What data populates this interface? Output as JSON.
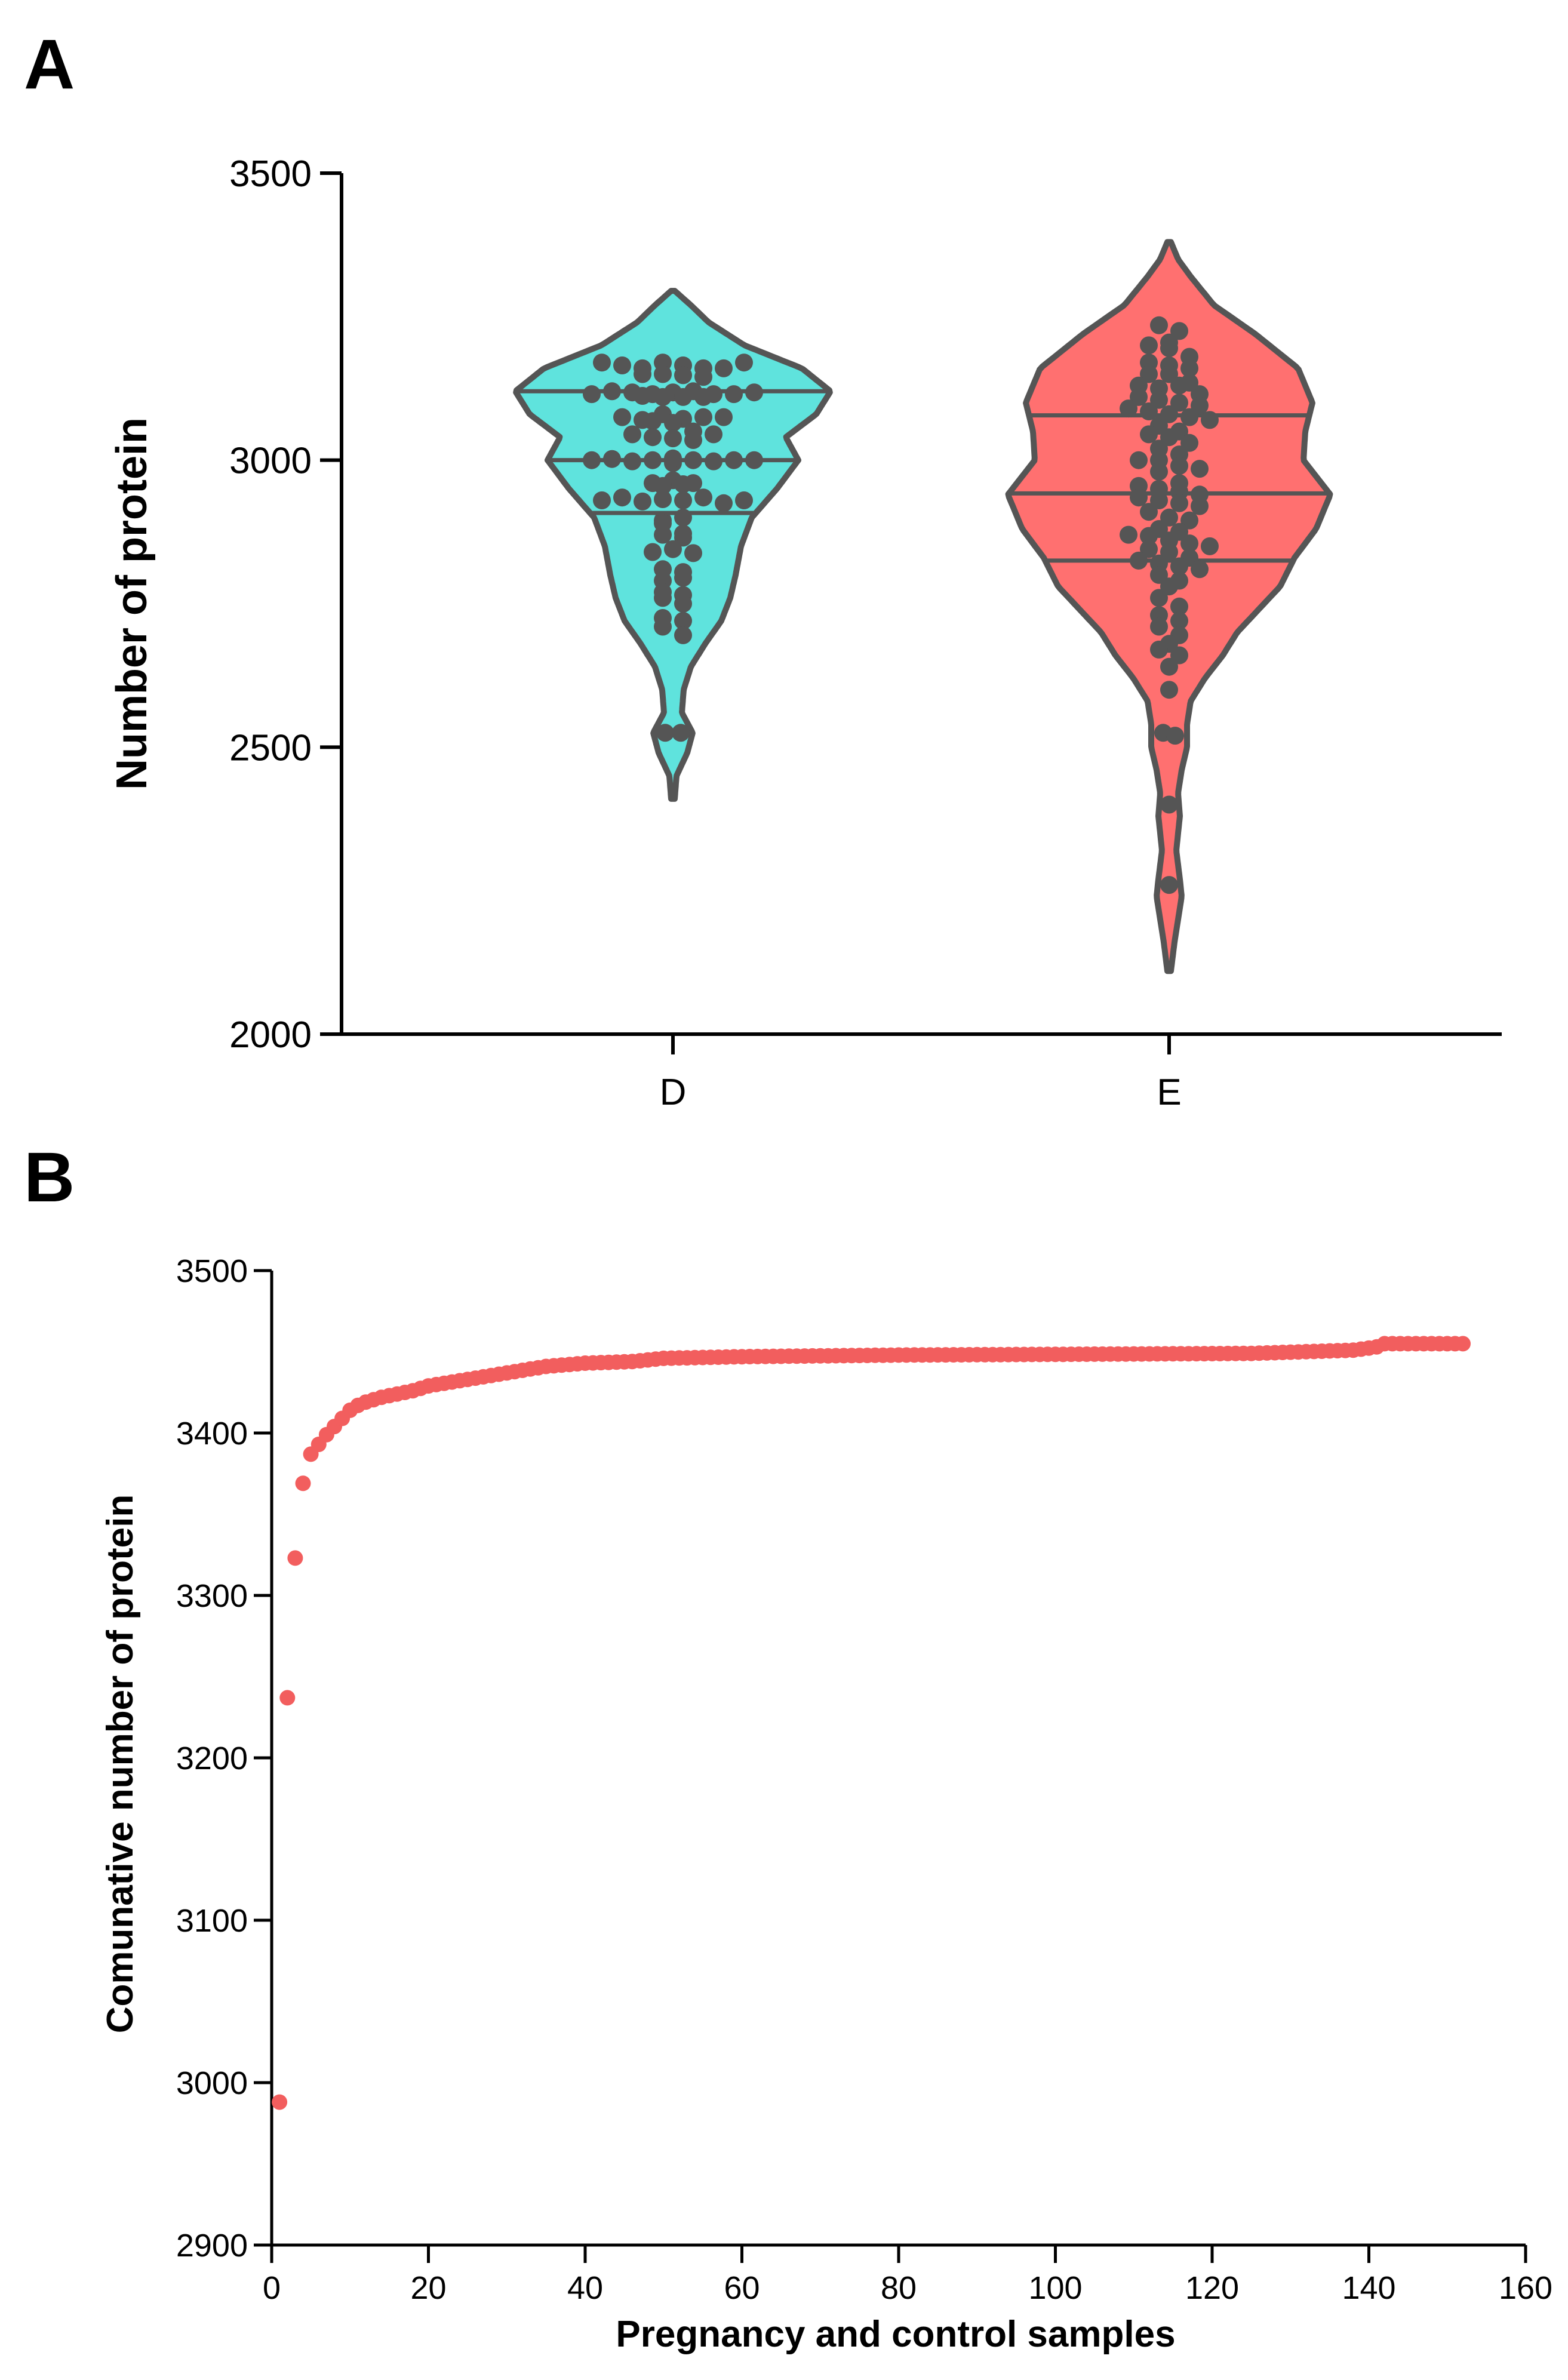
{
  "chart_data": [
    {
      "panel": "A",
      "type": "violin",
      "title": "",
      "xlabel": "",
      "ylabel": "Number of protein",
      "ylim": [
        2000,
        3500
      ],
      "yticks": [
        "2000",
        "2500",
        "3000",
        "3500"
      ],
      "categories": [
        "D",
        "E"
      ],
      "colors": {
        "D": "#5fe3dd",
        "E": "#ff7070",
        "outline": "#555555"
      },
      "groups": [
        {
          "name": "D",
          "min": 2410,
          "max": 3295,
          "quartiles": [
            2908,
            3000,
            3120
          ],
          "density": [
            [
              2410,
              0.01
            ],
            [
              2450,
              0.02
            ],
            [
              2490,
              0.08
            ],
            [
              2525,
              0.11
            ],
            [
              2560,
              0.05
            ],
            [
              2600,
              0.06
            ],
            [
              2640,
              0.1
            ],
            [
              2680,
              0.18
            ],
            [
              2720,
              0.27
            ],
            [
              2760,
              0.32
            ],
            [
              2800,
              0.35
            ],
            [
              2850,
              0.38
            ],
            [
              2900,
              0.44
            ],
            [
              2950,
              0.58
            ],
            [
              3000,
              0.7
            ],
            [
              3040,
              0.63
            ],
            [
              3080,
              0.8
            ],
            [
              3120,
              0.88
            ],
            [
              3160,
              0.72
            ],
            [
              3200,
              0.4
            ],
            [
              3240,
              0.2
            ],
            [
              3270,
              0.1
            ],
            [
              3295,
              0.01
            ]
          ],
          "points": [
            3170,
            3165,
            3160,
            3170,
            3165,
            3160,
            3150,
            3150,
            3148,
            3145,
            3160,
            3170,
            3115,
            3120,
            3118,
            3115,
            3112,
            3110,
            3118,
            3120,
            3115,
            3110,
            3115,
            3118,
            3110,
            3075,
            3070,
            3080,
            3072,
            3075,
            3068,
            3065,
            3075,
            3045,
            3040,
            3050,
            3038,
            3035,
            3045,
            3000,
            3002,
            2998,
            3000,
            2995,
            3000,
            3003,
            2998,
            3000,
            3000,
            2960,
            2965,
            2955,
            2960,
            2958,
            2930,
            2935,
            2928,
            2932,
            2930,
            2935,
            2925,
            2930,
            2895,
            2900,
            2890,
            2870,
            2865,
            2872,
            2840,
            2845,
            2838,
            2810,
            2805,
            2790,
            2795,
            2770,
            2765,
            2760,
            2750,
            2725,
            2720,
            2710,
            2695,
            2525,
            2525
          ]
        },
        {
          "name": "E",
          "min": 2110,
          "max": 3380,
          "quartiles": [
            2825,
            2942,
            3078
          ],
          "density": [
            [
              2110,
              0.01
            ],
            [
              2160,
              0.03
            ],
            [
              2200,
              0.05
            ],
            [
              2240,
              0.07
            ],
            [
              2270,
              0.06
            ],
            [
              2320,
              0.04
            ],
            [
              2380,
              0.06
            ],
            [
              2420,
              0.05
            ],
            [
              2460,
              0.07
            ],
            [
              2500,
              0.1
            ],
            [
              2540,
              0.1
            ],
            [
              2580,
              0.12
            ],
            [
              2620,
              0.2
            ],
            [
              2660,
              0.3
            ],
            [
              2700,
              0.38
            ],
            [
              2740,
              0.5
            ],
            [
              2780,
              0.62
            ],
            [
              2830,
              0.7
            ],
            [
              2880,
              0.82
            ],
            [
              2940,
              0.9
            ],
            [
              3000,
              0.75
            ],
            [
              3050,
              0.76
            ],
            [
              3100,
              0.8
            ],
            [
              3160,
              0.72
            ],
            [
              3220,
              0.48
            ],
            [
              3270,
              0.25
            ],
            [
              3320,
              0.12
            ],
            [
              3350,
              0.05
            ],
            [
              3380,
              0.01
            ]
          ],
          "points": [
            3235,
            3225,
            3205,
            3200,
            3195,
            3180,
            3170,
            3165,
            3160,
            3150,
            3150,
            3135,
            3130,
            3125,
            3130,
            3115,
            3110,
            3105,
            3100,
            3095,
            3090,
            3085,
            3080,
            3075,
            3070,
            3060,
            3050,
            3045,
            3040,
            3030,
            3020,
            3010,
            3000,
            3000,
            2990,
            2985,
            2980,
            2960,
            2955,
            2950,
            2945,
            2940,
            2935,
            2930,
            2925,
            2920,
            2910,
            2900,
            2895,
            2880,
            2875,
            2870,
            2868,
            2860,
            2855,
            2850,
            2845,
            2840,
            2830,
            2825,
            2820,
            2815,
            2810,
            2800,
            2790,
            2780,
            2760,
            2745,
            2730,
            2720,
            2710,
            2695,
            2680,
            2670,
            2660,
            2640,
            2600,
            2525,
            2520,
            2400,
            2260
          ]
        }
      ]
    },
    {
      "panel": "B",
      "type": "scatter",
      "title": "",
      "xlabel": "Pregnancy and control samples",
      "ylabel": "Comunative number of protein",
      "xlim": [
        0,
        160
      ],
      "ylim": [
        2900,
        3500
      ],
      "xticks": [
        "0",
        "20",
        "40",
        "60",
        "80",
        "100",
        "120",
        "140",
        "160"
      ],
      "yticks": [
        "2900",
        "3000",
        "3100",
        "3200",
        "3300",
        "3400",
        "3500"
      ],
      "color": "#f25e5e",
      "n_points": 152,
      "anchors": [
        [
          1,
          2988
        ],
        [
          2,
          3237
        ],
        [
          3,
          3323
        ],
        [
          4,
          3369
        ],
        [
          5,
          3387
        ],
        [
          6,
          3393
        ],
        [
          7,
          3399
        ],
        [
          8,
          3404
        ],
        [
          9,
          3409
        ],
        [
          10,
          3414
        ],
        [
          11,
          3417
        ],
        [
          12,
          3419
        ],
        [
          14,
          3422
        ],
        [
          16,
          3424
        ],
        [
          18,
          3426
        ],
        [
          20,
          3429
        ],
        [
          25,
          3433
        ],
        [
          30,
          3437
        ],
        [
          35,
          3441
        ],
        [
          40,
          3443
        ],
        [
          46,
          3444
        ],
        [
          50,
          3446
        ],
        [
          60,
          3447
        ],
        [
          80,
          3448
        ],
        [
          125,
          3449
        ],
        [
          138,
          3451
        ],
        [
          141,
          3453
        ],
        [
          142,
          3455
        ],
        [
          152,
          3455
        ]
      ]
    }
  ],
  "panel_labels": {
    "a": "A",
    "b": "B"
  }
}
